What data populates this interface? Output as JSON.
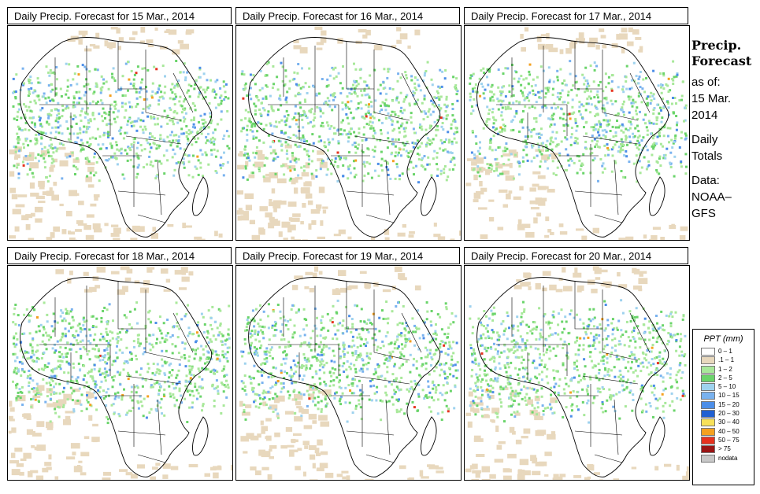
{
  "panels": [
    {
      "title": "Daily Precip. Forecast for  15 Mar., 2014"
    },
    {
      "title": "Daily Precip. Forecast for  16 Mar., 2014"
    },
    {
      "title": "Daily Precip. Forecast for  17 Mar., 2014"
    },
    {
      "title": "Daily Precip. Forecast for  18 Mar., 2014"
    },
    {
      "title": "Daily Precip. Forecast for  19 Mar., 2014"
    },
    {
      "title": "Daily Precip. Forecast for  20 Mar., 2014"
    }
  ],
  "side": {
    "heading_line1": "Precip.",
    "heading_line2": "Forecast",
    "asof": "as of:",
    "date_line1": "15 Mar.",
    "date_line2": "2014",
    "totals_line1": "Daily",
    "totals_line2": "Totals",
    "data_line1": "Data:",
    "data_line2": "NOAA–",
    "data_line3": "GFS"
  },
  "legend": {
    "title": "PPT (mm)",
    "items": [
      {
        "label": "0 – 1",
        "color": "#ffffff"
      },
      {
        "label": ".1 – 1",
        "color": "#e8d8bd"
      },
      {
        "label": "1 – 2",
        "color": "#a8e89a"
      },
      {
        "label": "2 – 5",
        "color": "#6ad46a"
      },
      {
        "label": "5 – 10",
        "color": "#9ed2ee"
      },
      {
        "label": "10 – 15",
        "color": "#79b2ef"
      },
      {
        "label": "15 – 20",
        "color": "#4c8ee8"
      },
      {
        "label": "20 – 30",
        "color": "#2160d2"
      },
      {
        "label": "30 – 40",
        "color": "#f7e15a"
      },
      {
        "label": "40 – 50",
        "color": "#f4a120"
      },
      {
        "label": "50 – 75",
        "color": "#e6321e"
      },
      {
        "label": "> 75",
        "color": "#9a1414"
      },
      {
        "label": "nodata",
        "color": "#c8c8c8"
      }
    ]
  }
}
